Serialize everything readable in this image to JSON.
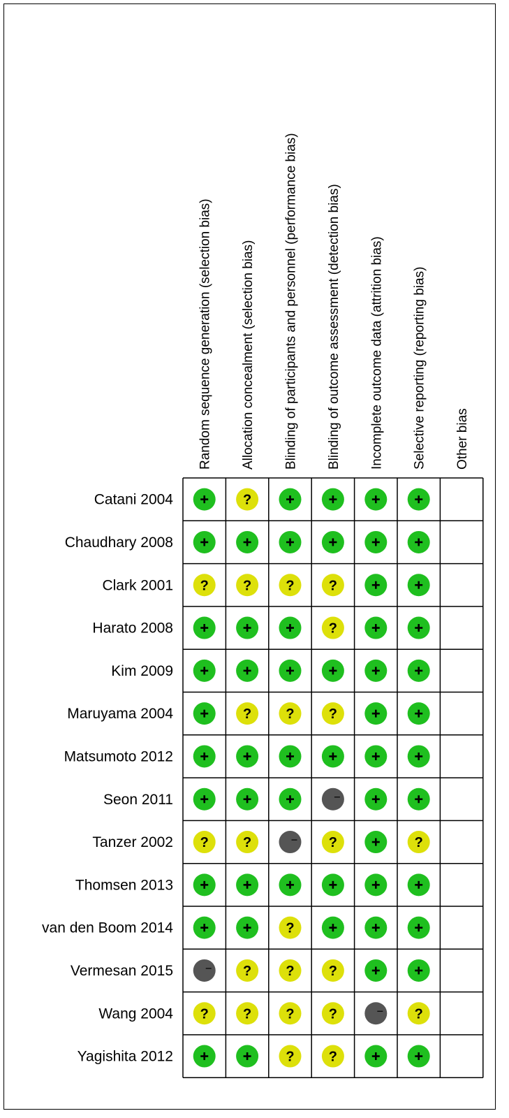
{
  "chart_data": {
    "type": "table",
    "columns": [
      "Random sequence generation (selection bias)",
      "Allocation concealment (selection bias)",
      "Blinding of participants and personnel (performance bias)",
      "Blinding of outcome assessment (detection bias)",
      "Incomplete outcome data (attrition bias)",
      "Selective reporting (reporting bias)",
      "Other bias"
    ],
    "rows": [
      {
        "study": "Catani 2004",
        "judgements": [
          "+",
          "?",
          "+",
          "+",
          "+",
          "+",
          ""
        ]
      },
      {
        "study": "Chaudhary 2008",
        "judgements": [
          "+",
          "+",
          "+",
          "+",
          "+",
          "+",
          ""
        ]
      },
      {
        "study": "Clark 2001",
        "judgements": [
          "?",
          "?",
          "?",
          "?",
          "+",
          "+",
          ""
        ]
      },
      {
        "study": "Harato 2008",
        "judgements": [
          "+",
          "+",
          "+",
          "?",
          "+",
          "+",
          ""
        ]
      },
      {
        "study": "Kim 2009",
        "judgements": [
          "+",
          "+",
          "+",
          "+",
          "+",
          "+",
          ""
        ]
      },
      {
        "study": "Maruyama 2004",
        "judgements": [
          "+",
          "?",
          "?",
          "?",
          "+",
          "+",
          ""
        ]
      },
      {
        "study": "Matsumoto 2012",
        "judgements": [
          "+",
          "+",
          "+",
          "+",
          "+",
          "+",
          ""
        ]
      },
      {
        "study": "Seon 2011",
        "judgements": [
          "+",
          "+",
          "+",
          "-",
          "+",
          "+",
          ""
        ]
      },
      {
        "study": "Tanzer 2002",
        "judgements": [
          "?",
          "?",
          "-",
          "?",
          "+",
          "?",
          ""
        ]
      },
      {
        "study": "Thomsen 2013",
        "judgements": [
          "+",
          "+",
          "+",
          "+",
          "+",
          "+",
          ""
        ]
      },
      {
        "study": "van den Boom 2014",
        "judgements": [
          "+",
          "+",
          "?",
          "+",
          "+",
          "+",
          ""
        ]
      },
      {
        "study": "Vermesan 2015",
        "judgements": [
          "-",
          "?",
          "?",
          "?",
          "+",
          "+",
          ""
        ]
      },
      {
        "study": "Wang 2004",
        "judgements": [
          "?",
          "?",
          "?",
          "?",
          "-",
          "?",
          ""
        ]
      },
      {
        "study": "Yagishita 2012",
        "judgements": [
          "+",
          "+",
          "?",
          "?",
          "+",
          "+",
          ""
        ]
      }
    ],
    "symbols": {
      "low": "+",
      "unclear": "?",
      "high": "−"
    },
    "colors": {
      "low": "#1fbf1f",
      "unclear": "#dde00a",
      "high": "#555555"
    }
  }
}
